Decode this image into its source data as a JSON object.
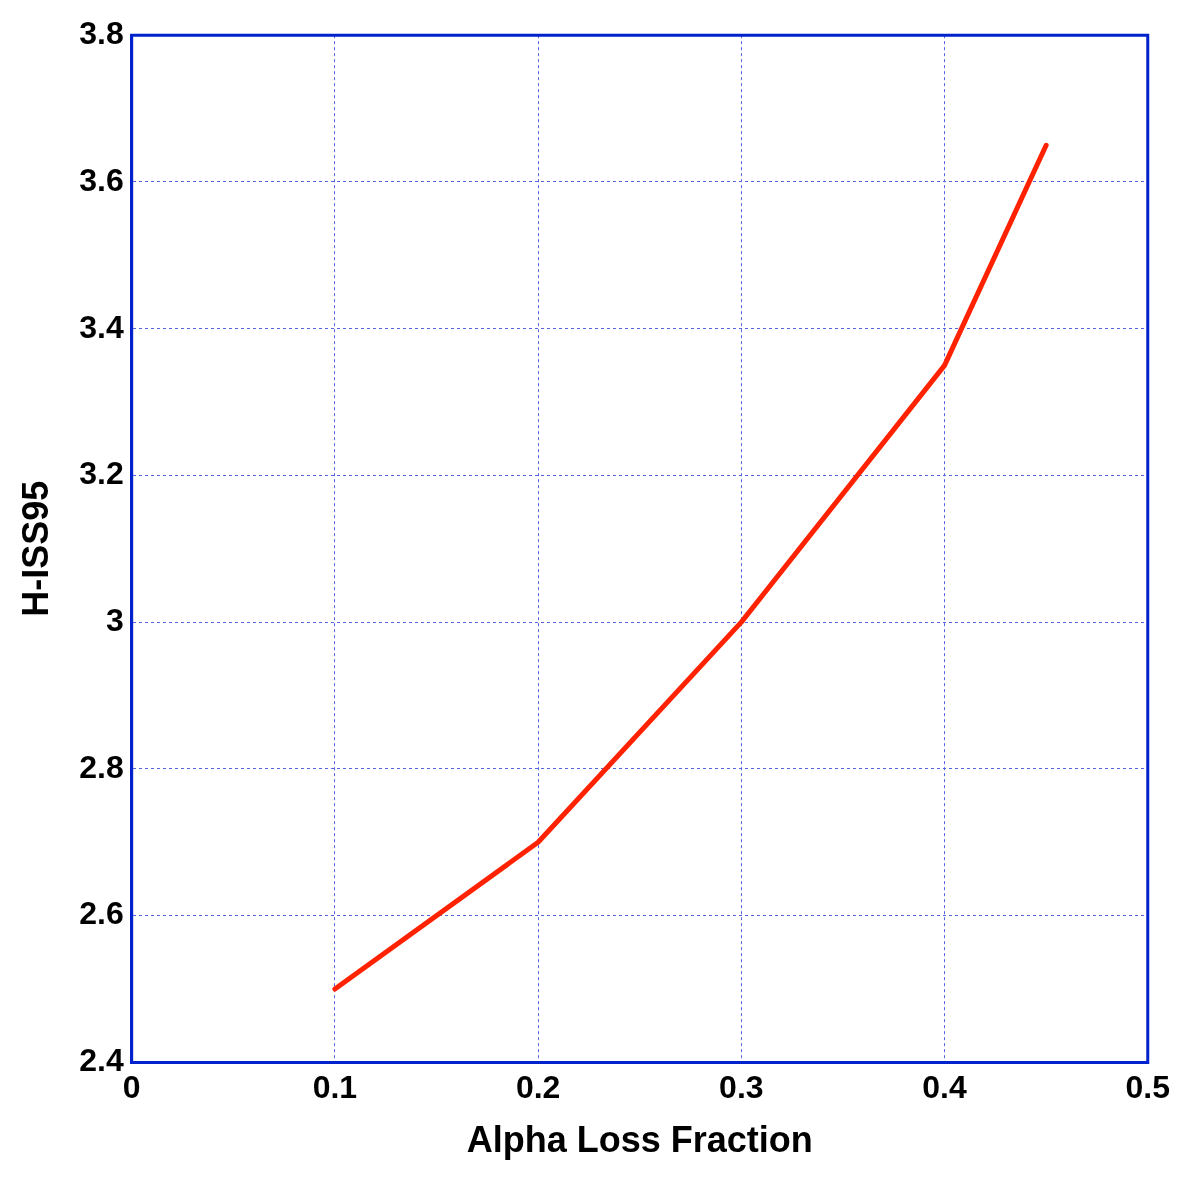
{
  "chart_data": {
    "type": "line",
    "xlabel": "Alpha Loss Fraction",
    "ylabel": "H-ISS95",
    "series": [
      {
        "color": "#ff2200",
        "x": [
          0.1,
          0.2,
          0.3,
          0.4,
          0.45
        ],
        "values": [
          2.5,
          2.7,
          3.0,
          3.35,
          3.65
        ]
      }
    ],
    "xlim": [
      0,
      0.5
    ],
    "xticks": [
      0,
      0.1,
      0.2,
      0.3,
      0.4,
      0.5
    ],
    "ylim": [
      2.4,
      3.8
    ],
    "yticks": [
      2.4,
      2.6,
      2.8,
      3,
      3.2,
      3.4,
      3.6,
      3.8
    ],
    "grid": true,
    "marker": "none",
    "line_style": "solid"
  }
}
